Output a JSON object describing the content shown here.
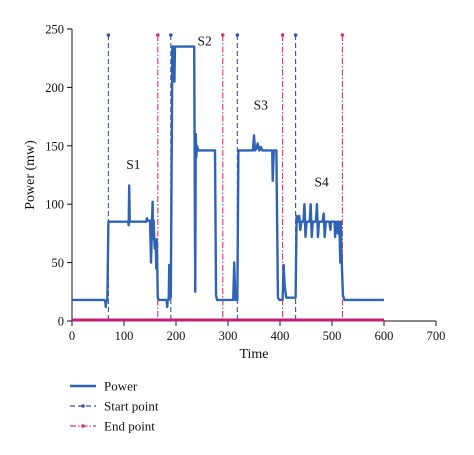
{
  "chart_data": {
    "type": "line",
    "xlabel": "Time",
    "ylabel": "Power (mw)",
    "xlim": [
      0,
      700
    ],
    "ylim": [
      0,
      250
    ],
    "xticks": [
      0,
      100,
      200,
      300,
      400,
      500,
      600,
      700
    ],
    "yticks": [
      0,
      50,
      100,
      150,
      200,
      250
    ],
    "grid": false,
    "legend_position": "bottom-left",
    "series": [
      {
        "name": "Power",
        "color": "#2e63b8",
        "style": "solid",
        "points": [
          [
            0,
            18
          ],
          [
            62,
            18
          ],
          [
            64,
            17
          ],
          [
            65,
            12
          ],
          [
            66,
            17
          ],
          [
            68,
            19
          ],
          [
            70,
            85
          ],
          [
            108,
            85
          ],
          [
            109,
            82
          ],
          [
            110,
            116
          ],
          [
            111,
            85
          ],
          [
            143,
            85
          ],
          [
            144,
            88
          ],
          [
            145,
            86
          ],
          [
            150,
            86
          ],
          [
            152,
            50
          ],
          [
            154,
            86
          ],
          [
            155,
            102
          ],
          [
            156,
            70
          ],
          [
            157,
            86
          ],
          [
            159,
            62
          ],
          [
            161,
            68
          ],
          [
            162,
            45
          ],
          [
            163,
            70
          ],
          [
            165,
            20
          ],
          [
            167,
            18
          ],
          [
            182,
            18
          ],
          [
            183,
            12
          ],
          [
            184,
            18
          ],
          [
            186,
            18
          ],
          [
            187,
            48
          ],
          [
            188,
            20
          ],
          [
            190,
            20
          ],
          [
            193,
            235
          ],
          [
            196,
            235
          ],
          [
            197,
            205
          ],
          [
            198,
            235
          ],
          [
            235,
            235
          ],
          [
            236,
            125
          ],
          [
            237,
            25
          ],
          [
            238,
            160
          ],
          [
            239,
            140
          ],
          [
            240,
            150
          ],
          [
            243,
            146
          ],
          [
            275,
            146
          ],
          [
            277,
            22
          ],
          [
            279,
            18
          ],
          [
            310,
            18
          ],
          [
            312,
            50
          ],
          [
            314,
            18
          ],
          [
            318,
            18
          ],
          [
            320,
            146
          ],
          [
            348,
            146
          ],
          [
            350,
            159
          ],
          [
            352,
            146
          ],
          [
            355,
            148
          ],
          [
            357,
            152
          ],
          [
            360,
            146
          ],
          [
            363,
            149
          ],
          [
            366,
            146
          ],
          [
            385,
            146
          ],
          [
            386,
            120
          ],
          [
            388,
            146
          ],
          [
            393,
            146
          ],
          [
            396,
            20
          ],
          [
            399,
            18
          ],
          [
            405,
            18
          ],
          [
            407,
            48
          ],
          [
            409,
            30
          ],
          [
            412,
            20
          ],
          [
            430,
            20
          ],
          [
            432,
            90
          ],
          [
            434,
            85
          ],
          [
            437,
            90
          ],
          [
            439,
            78
          ],
          [
            441,
            85
          ],
          [
            445,
            85
          ],
          [
            447,
            100
          ],
          [
            449,
            72
          ],
          [
            451,
            85
          ],
          [
            457,
            85
          ],
          [
            459,
            100
          ],
          [
            461,
            72
          ],
          [
            463,
            85
          ],
          [
            469,
            85
          ],
          [
            471,
            100
          ],
          [
            473,
            72
          ],
          [
            475,
            85
          ],
          [
            482,
            85
          ],
          [
            484,
            92
          ],
          [
            486,
            72
          ],
          [
            488,
            85
          ],
          [
            495,
            85
          ],
          [
            497,
            78
          ],
          [
            498,
            85
          ],
          [
            505,
            85
          ],
          [
            506,
            72
          ],
          [
            507,
            85
          ],
          [
            509,
            85
          ],
          [
            511,
            75
          ],
          [
            512,
            85
          ],
          [
            514,
            85
          ],
          [
            516,
            50
          ],
          [
            517,
            85
          ],
          [
            518,
            60
          ],
          [
            521,
            22
          ],
          [
            524,
            18
          ],
          [
            600,
            18
          ]
        ]
      },
      {
        "name": "Start point",
        "color": "#3b4fb0",
        "style": "dashed",
        "x_values": [
          70,
          190,
          318,
          430
        ]
      },
      {
        "name": "End point",
        "color": "#e0306a",
        "style": "dashdot",
        "x_values": [
          165,
          290,
          405,
          520
        ]
      }
    ],
    "baseline": {
      "y": 0,
      "color": "#c0207e"
    },
    "annotations": [
      {
        "text": "S1",
        "x": 118,
        "y": 130
      },
      {
        "text": "S2",
        "x": 255,
        "y": 236
      },
      {
        "text": "S3",
        "x": 363,
        "y": 181
      },
      {
        "text": "S4",
        "x": 480,
        "y": 115
      }
    ]
  }
}
